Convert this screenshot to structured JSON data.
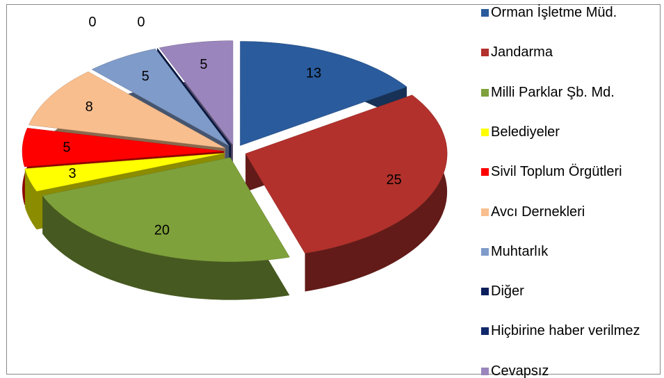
{
  "chart_data": {
    "type": "pie3d",
    "categories": [
      "Orman İşletme Müd.",
      "Jandarma",
      "Milli Parklar Şb. Md.",
      "Belediyeler",
      "Sivil Toplum Örgütleri",
      "Avcı Dernekleri",
      "Muhtarlık",
      "Diğer",
      "Hiçbirine haber verilmez",
      "Cevapsız"
    ],
    "values": [
      13,
      25,
      20,
      3,
      5,
      8,
      5,
      0,
      0,
      5
    ],
    "colors": [
      "#2a5b9c",
      "#b3312c",
      "#7fa13b",
      "#ffff00",
      "#ff0000",
      "#f9be8e",
      "#7f9bc9",
      "#0b1f5c",
      "#10286b",
      "#9a86bc"
    ],
    "legend": "right"
  }
}
